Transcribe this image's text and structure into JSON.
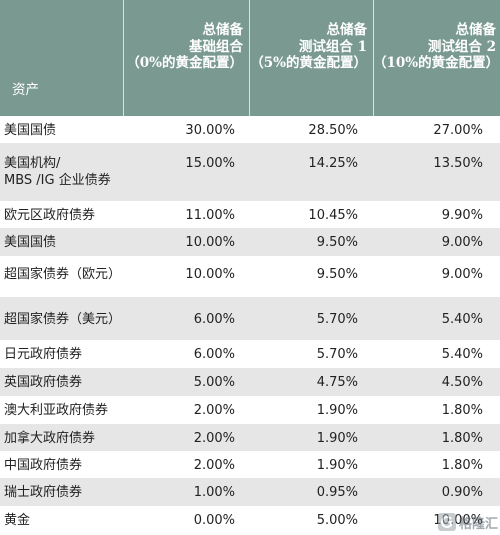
{
  "header": {
    "asset": "资产",
    "col1": [
      "总储备",
      "基础组合",
      "（0%的黄金配置）"
    ],
    "col2": [
      "总储备",
      "测试组合 1",
      "（5%的黄金配置）"
    ],
    "col3": [
      "总储备",
      "测试组合 2",
      "（10%的黄金配置）"
    ]
  },
  "rows": [
    {
      "asset": [
        "美国国债"
      ],
      "c1": "30.00%",
      "c2": "28.50%",
      "c3": "27.00%"
    },
    {
      "asset": [
        "美国机构/",
        "MBS /IG 企业债券"
      ],
      "c1": "15.00%",
      "c2": "14.25%",
      "c3": "13.50%"
    },
    {
      "asset": [
        "欧元区政府债券"
      ],
      "c1": "11.00%",
      "c2": "10.45%",
      "c3": "9.90%"
    },
    {
      "asset": [
        "美国国债"
      ],
      "c1": "10.00%",
      "c2": "9.50%",
      "c3": "9.00%"
    },
    {
      "asset": [
        "超国家债券（欧元）"
      ],
      "c1": "10.00%",
      "c2": "9.50%",
      "c3": "9.00%"
    },
    {
      "asset": [
        "超国家债券（美元）"
      ],
      "c1": "6.00%",
      "c2": "5.70%",
      "c3": "5.40%"
    },
    {
      "asset": [
        "日元政府债券"
      ],
      "c1": "6.00%",
      "c2": "5.70%",
      "c3": "5.40%"
    },
    {
      "asset": [
        "英国政府债券"
      ],
      "c1": "5.00%",
      "c2": "4.75%",
      "c3": "4.50%"
    },
    {
      "asset": [
        "澳大利亚政府债券"
      ],
      "c1": "2.00%",
      "c2": "1.90%",
      "c3": "1.80%"
    },
    {
      "asset": [
        "加拿大政府债券"
      ],
      "c1": "2.00%",
      "c2": "1.90%",
      "c3": "1.80%"
    },
    {
      "asset": [
        "中国政府债券"
      ],
      "c1": "2.00%",
      "c2": "1.90%",
      "c3": "1.80%"
    },
    {
      "asset": [
        "瑞士政府债券"
      ],
      "c1": "1.00%",
      "c2": "0.95%",
      "c3": "0.90%"
    },
    {
      "asset": [
        "黄金"
      ],
      "c1": "0.00%",
      "c2": "5.00%",
      "c3": "10.00%"
    }
  ],
  "watermark": {
    "text": "格隆汇",
    "icon": "gelonghui-logo-icon"
  }
}
